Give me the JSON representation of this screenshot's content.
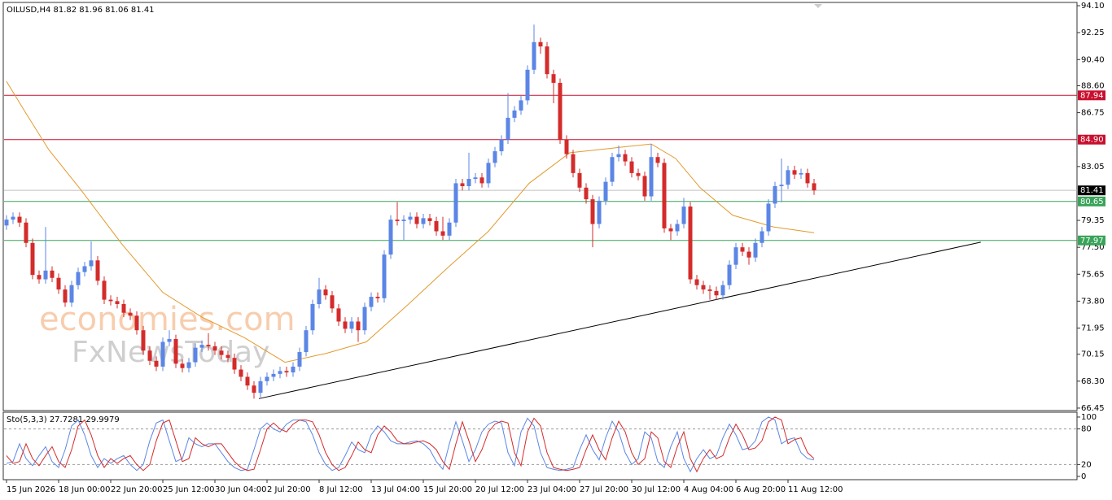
{
  "chart_data": [
    {
      "type": "candlestick",
      "title": "OILUSD,H4  81.82 81.96 81.06 81.41",
      "watermarks": [
        "economies.com",
        "FxNewsToday"
      ],
      "categories": [
        "15 Jun 2026",
        null,
        null,
        null,
        null,
        null,
        null,
        null,
        "18 Jun 00:00",
        null,
        null,
        null,
        null,
        null,
        null,
        null,
        "22 Jun 20:00",
        null,
        null,
        null,
        null,
        null,
        null,
        null,
        "25 Jun 12:00",
        null,
        null,
        null,
        null,
        null,
        null,
        null,
        "30 Jun 04:00",
        null,
        null,
        null,
        null,
        null,
        null,
        null,
        "2 Jul 20:00",
        null,
        null,
        null,
        null,
        null,
        null,
        null,
        "8 Jul 12:00",
        null,
        null,
        null,
        null,
        null,
        null,
        null,
        "13 Jul 04:00",
        null,
        null,
        null,
        null,
        null,
        null,
        null,
        "15 Jul 20:00",
        null,
        null,
        null,
        null,
        null,
        null,
        null,
        "20 Jul 12:00",
        null,
        null,
        null,
        null,
        null,
        null,
        null,
        "23 Jul 04:00",
        null,
        null,
        null,
        null,
        null,
        null,
        null,
        "27 Jul 20:00",
        null,
        null,
        null,
        null,
        null,
        null,
        null,
        "30 Jul 12:00",
        null,
        null,
        null,
        null,
        null,
        null,
        null,
        "4 Aug 04:00",
        null,
        null,
        null,
        null,
        null,
        null,
        null,
        "6 Aug 20:00",
        null,
        null,
        null,
        null,
        null,
        null,
        null,
        "11 Aug 12:00",
        null,
        null,
        null,
        null
      ],
      "open": [
        79.0,
        79.4,
        79.6,
        79.2,
        77.8,
        75.6,
        75.3,
        75.9,
        75.4,
        74.6,
        73.7,
        74.9,
        75.8,
        76.2,
        76.6,
        75.2,
        73.9,
        73.8,
        73.6,
        73.0,
        72.8,
        71.8,
        70.4,
        69.7,
        69.3,
        71.0,
        71.2,
        69.5,
        69.2,
        69.6,
        70.6,
        70.8,
        70.7,
        70.4,
        70.1,
        69.9,
        69.1,
        68.6,
        68.0,
        67.5,
        68.3,
        68.6,
        68.8,
        69.0,
        68.9,
        69.3,
        70.3,
        71.8,
        73.6,
        74.6,
        74.2,
        73.3,
        72.4,
        71.9,
        72.4,
        71.8,
        73.4,
        74.1,
        74.0,
        77.0,
        79.4,
        79.3,
        79.4,
        79.6,
        79.1,
        79.5,
        79.3,
        78.6,
        78.3,
        79.2,
        81.9,
        81.7,
        82.2,
        82.3,
        81.9,
        83.3,
        84.1,
        84.9,
        86.4,
        86.9,
        87.6,
        89.7,
        91.6,
        91.3,
        89.4,
        88.8,
        84.9,
        83.9,
        82.6,
        81.6,
        80.8,
        79.1,
        80.7,
        82.0,
        83.7,
        83.9,
        83.4,
        82.6,
        82.4,
        81.0,
        83.7,
        83.3,
        78.8,
        78.6,
        79.1,
        80.3,
        75.3,
        74.9,
        74.6,
        74.5,
        74.2,
        74.9,
        76.3,
        77.5,
        77.2,
        76.8,
        77.8,
        78.6,
        80.5,
        81.7,
        81.8,
        82.8,
        82.5,
        82.6,
        81.9
      ],
      "high": [
        79.7,
        79.9,
        79.9,
        79.5,
        78.1,
        75.9,
        78.9,
        76.2,
        75.7,
        74.9,
        75.2,
        76.1,
        76.5,
        77.9,
        76.9,
        75.5,
        74.2,
        74.1,
        73.9,
        73.3,
        73.1,
        72.1,
        70.7,
        70.0,
        71.3,
        71.8,
        71.5,
        69.8,
        69.9,
        70.9,
        71.1,
        71.6,
        71.0,
        70.7,
        70.4,
        70.2,
        69.4,
        68.9,
        68.3,
        68.6,
        68.9,
        69.1,
        69.3,
        69.3,
        69.6,
        70.6,
        72.1,
        73.9,
        75.4,
        74.9,
        74.5,
        73.6,
        72.7,
        72.7,
        72.7,
        73.7,
        74.4,
        74.4,
        77.3,
        79.7,
        80.6,
        79.7,
        79.9,
        79.9,
        79.8,
        79.8,
        79.6,
        79.6,
        79.5,
        82.2,
        82.2,
        84.0,
        82.6,
        82.6,
        83.6,
        84.4,
        85.2,
        88.1,
        87.2,
        87.9,
        90.0,
        92.8,
        91.9,
        91.6,
        89.7,
        89.1,
        85.2,
        84.2,
        82.9,
        81.9,
        81.1,
        81.0,
        82.3,
        84.0,
        84.5,
        84.2,
        83.7,
        82.9,
        82.7,
        84.6,
        84.0,
        83.6,
        79.1,
        79.4,
        80.9,
        80.6,
        75.6,
        75.2,
        74.9,
        74.8,
        75.2,
        76.6,
        77.8,
        77.8,
        77.5,
        78.1,
        78.9,
        80.8,
        82.0,
        83.6,
        83.1,
        83.1,
        82.9,
        82.9,
        82.2
      ],
      "low": [
        78.7,
        79.1,
        78.9,
        77.5,
        75.3,
        75.0,
        75.0,
        75.1,
        74.3,
        73.4,
        73.4,
        74.6,
        75.5,
        75.9,
        74.9,
        73.6,
        73.5,
        73.3,
        72.7,
        72.5,
        71.5,
        70.1,
        69.4,
        69.0,
        69.0,
        70.7,
        69.2,
        68.9,
        68.9,
        69.3,
        70.3,
        70.4,
        70.1,
        69.8,
        69.6,
        68.8,
        68.3,
        67.7,
        67.1,
        67.2,
        68.0,
        68.3,
        68.5,
        68.6,
        68.6,
        69.0,
        70.0,
        71.5,
        73.3,
        73.9,
        73.0,
        72.1,
        71.6,
        71.6,
        71.0,
        71.5,
        73.1,
        73.7,
        73.7,
        76.7,
        79.0,
        78.0,
        79.1,
        78.8,
        78.8,
        79.0,
        78.3,
        78.0,
        78.0,
        78.9,
        81.4,
        81.4,
        81.9,
        81.6,
        81.6,
        83.0,
        83.8,
        84.6,
        86.1,
        86.6,
        87.3,
        89.4,
        90.8,
        89.1,
        87.4,
        84.6,
        83.6,
        82.3,
        81.3,
        80.5,
        77.5,
        78.8,
        80.4,
        81.7,
        83.4,
        83.1,
        82.3,
        82.1,
        80.7,
        80.7,
        83.0,
        78.5,
        78.0,
        78.3,
        78.8,
        75.0,
        74.6,
        74.3,
        73.9,
        73.9,
        73.9,
        74.6,
        76.0,
        76.9,
        76.3,
        76.5,
        77.5,
        78.3,
        80.2,
        80.6,
        81.5,
        82.2,
        82.2,
        81.6,
        81.1
      ],
      "close": [
        79.4,
        79.6,
        79.2,
        77.8,
        75.6,
        75.3,
        75.9,
        75.4,
        74.6,
        73.7,
        74.9,
        75.8,
        76.2,
        76.6,
        75.2,
        73.9,
        73.8,
        73.6,
        73.0,
        72.8,
        71.8,
        70.4,
        69.7,
        69.3,
        71.0,
        71.2,
        69.5,
        69.2,
        69.6,
        70.6,
        70.8,
        70.7,
        70.4,
        70.1,
        69.9,
        69.1,
        68.6,
        68.0,
        67.5,
        68.3,
        68.6,
        68.8,
        69.0,
        68.9,
        69.3,
        70.3,
        71.8,
        73.6,
        74.6,
        74.2,
        73.3,
        72.4,
        71.9,
        72.4,
        71.8,
        73.4,
        74.1,
        74.0,
        77.0,
        79.4,
        79.3,
        79.4,
        79.6,
        79.1,
        79.5,
        79.3,
        78.6,
        78.3,
        79.2,
        81.9,
        81.7,
        82.2,
        82.3,
        81.9,
        83.3,
        84.1,
        84.9,
        86.4,
        86.9,
        87.6,
        89.7,
        91.6,
        91.3,
        89.4,
        88.8,
        84.9,
        83.9,
        82.6,
        81.6,
        80.8,
        79.1,
        80.7,
        82.0,
        83.7,
        83.9,
        83.4,
        82.6,
        82.4,
        81.0,
        83.7,
        83.3,
        78.8,
        78.6,
        79.1,
        80.3,
        75.3,
        74.9,
        74.6,
        74.5,
        74.2,
        74.9,
        76.3,
        77.5,
        77.2,
        76.8,
        77.8,
        78.6,
        80.5,
        81.7,
        81.8,
        82.8,
        82.5,
        82.6,
        81.9,
        81.41
      ],
      "up_color": "#5b86e5",
      "down_color": "#d42b2b",
      "xlim": [
        -0.375,
        164.375
      ],
      "ylim": [
        66.28,
        94.27
      ],
      "yticks": [
        {
          "value": 94.1,
          "label": "94.10"
        },
        92.25,
        {
          "value": 90.4,
          "label": "90.40"
        },
        {
          "value": 88.6,
          "label": "88.60"
        },
        86.75,
        83.05,
        79.35,
        {
          "value": 77.5,
          "label": "77.50"
        },
        75.65,
        {
          "value": 73.8,
          "label": "73.80"
        },
        71.95,
        70.15,
        {
          "value": 68.3,
          "label": "68.30"
        },
        66.45
      ],
      "ma": {
        "color": "#e39a2d",
        "x": [
          0,
          3,
          6.5,
          11.5,
          17.75,
          24,
          30,
          36.5,
          42.75,
          49,
          55.25,
          61.5,
          67.75,
          74,
          80.25,
          86.5,
          92.75,
          99,
          102.75,
          106.5,
          111.5,
          117.75,
          124
        ],
        "values": [
          88.9,
          86.7,
          84.2,
          81.4,
          77.7,
          74.4,
          72.7,
          71.3,
          69.6,
          70.2,
          71.0,
          73.5,
          76.1,
          78.6,
          81.9,
          84.0,
          84.3,
          84.6,
          83.6,
          81.6,
          79.7,
          78.9,
          78.5
        ]
      },
      "trendline": {
        "color": "#000000",
        "x": [
          38.75,
          149.6
        ],
        "values": [
          67.1,
          77.85
        ]
      },
      "levels": [
        {
          "value": 87.94,
          "color": "#c8102e"
        },
        {
          "value": 84.9,
          "label": "84.90",
          "color": "#c8102e"
        },
        {
          "value": 81.41,
          "color": "#000000",
          "line_color": "#c0c0c0"
        },
        {
          "value": 80.65,
          "color": "#3aa35a"
        },
        {
          "value": 77.97,
          "color": "#3aa35a"
        }
      ]
    },
    {
      "type": "line",
      "title": "Sto(5,3,3) 27.7281 29.9979",
      "xlim": [
        -0.375,
        164.375
      ],
      "ylim": [
        -5.5,
        106.8
      ],
      "yticks": [
        0,
        20,
        80,
        100
      ],
      "series": [
        {
          "color": "#5b86e5",
          "values": [
            22,
            25,
            55,
            30,
            18,
            35,
            50,
            25,
            15,
            45,
            85,
            95,
            70,
            35,
            15,
            30,
            22,
            30,
            35,
            20,
            10,
            20,
            60,
            90,
            95,
            60,
            25,
            30,
            65,
            55,
            50,
            55,
            55,
            40,
            25,
            15,
            10,
            12,
            45,
            80,
            90,
            80,
            75,
            88,
            95,
            95,
            92,
            70,
            40,
            20,
            10,
            15,
            35,
            58,
            45,
            40,
            70,
            85,
            75,
            60,
            55,
            55,
            58,
            60,
            55,
            45,
            25,
            12,
            55,
            92,
            60,
            25,
            45,
            75,
            88,
            93,
            90,
            40,
            18,
            75,
            98,
            85,
            40,
            15,
            12,
            10,
            12,
            15,
            45,
            70,
            45,
            28,
            65,
            93,
            75,
            40,
            20,
            30,
            75,
            65,
            25,
            15,
            50,
            75,
            30,
            8,
            30,
            45,
            30,
            35,
            65,
            88,
            70,
            45,
            48,
            60,
            92,
            100,
            95,
            55,
            62,
            65,
            40,
            30,
            27.7281
          ]
        },
        {
          "color": "#d42b2b",
          "values": [
            35,
            22,
            25,
            55,
            30,
            18,
            35,
            50,
            25,
            15,
            45,
            85,
            95,
            70,
            35,
            15,
            30,
            22,
            30,
            35,
            20,
            10,
            20,
            60,
            90,
            95,
            60,
            25,
            30,
            65,
            55,
            50,
            55,
            55,
            40,
            25,
            15,
            10,
            12,
            45,
            80,
            90,
            80,
            75,
            88,
            95,
            95,
            92,
            70,
            40,
            20,
            10,
            15,
            35,
            58,
            45,
            40,
            70,
            85,
            75,
            60,
            55,
            55,
            58,
            60,
            55,
            45,
            25,
            12,
            55,
            92,
            60,
            25,
            45,
            75,
            88,
            93,
            90,
            40,
            18,
            75,
            98,
            85,
            40,
            15,
            12,
            10,
            12,
            15,
            45,
            70,
            45,
            28,
            65,
            93,
            75,
            40,
            20,
            30,
            75,
            65,
            25,
            15,
            50,
            75,
            30,
            8,
            30,
            45,
            30,
            35,
            65,
            88,
            70,
            45,
            48,
            60,
            92,
            100,
            95,
            55,
            62,
            65,
            40,
            29.9979
          ]
        }
      ]
    }
  ]
}
